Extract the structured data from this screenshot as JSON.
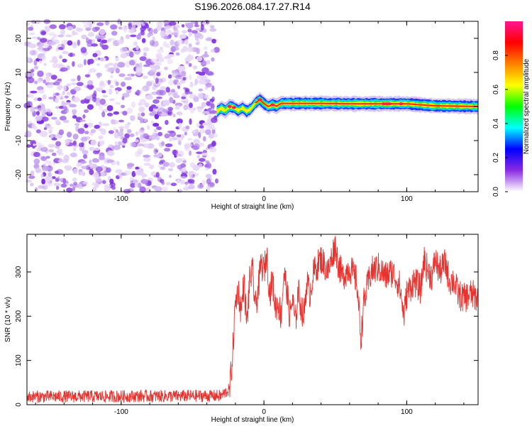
{
  "figure": {
    "title": "S196.2026.084.17.27.R14"
  },
  "chart_data": [
    {
      "type": "heatmap",
      "name": "spectrogram",
      "title": "S196.2026.084.17.27.R14",
      "xlabel": "Height of straight line (km)",
      "ylabel": "Frequency (Hz)",
      "xlim": [
        -166,
        150
      ],
      "ylim": [
        -25,
        25
      ],
      "xticks": [
        -100,
        0,
        100
      ],
      "yticks": [
        -20,
        -10,
        0,
        10,
        20
      ],
      "noise_region_x": [
        -166,
        -33
      ],
      "signal_region_x": [
        -33,
        150
      ],
      "frequency_track": {
        "x": [
          -33,
          -30,
          -27,
          -24,
          -21,
          -18,
          -15,
          -12,
          -9,
          -6,
          -3,
          0,
          3,
          6,
          9,
          12,
          20,
          40,
          60,
          80,
          100,
          120,
          150
        ],
        "freq": [
          -1.5,
          -0.5,
          -1.2,
          0.0,
          -0.3,
          -1.2,
          -0.4,
          -1.4,
          -0.6,
          1.0,
          2.0,
          0.9,
          0.0,
          0.5,
          0.1,
          0.9,
          0.9,
          0.9,
          0.8,
          0.8,
          0.8,
          0.2,
          0.0
        ]
      },
      "colorbar": {
        "label": "Normalized spectral amplitude",
        "range": [
          0,
          1
        ],
        "ticks": [
          "0.0",
          "0.2",
          "0.4",
          "0.6",
          "0.8"
        ],
        "colors": [
          "#ffffff",
          "#8a2be2",
          "#0000ff",
          "#00ffff",
          "#00ff00",
          "#ffff00",
          "#ff8000",
          "#ff0000",
          "#ff1493"
        ]
      }
    },
    {
      "type": "line",
      "name": "snr",
      "xlabel": "Height of straight line (km)",
      "ylabel": "SNR (10 * v/v)",
      "xlim": [
        -166,
        150
      ],
      "ylim": [
        0,
        385
      ],
      "xticks": [
        -100,
        0,
        100
      ],
      "yticks": [
        0,
        100,
        200,
        300
      ],
      "color": "#e8322e",
      "series": [
        {
          "name": "SNR",
          "anchors_x": [
            -166,
            -30,
            -24,
            -22,
            -20,
            -18,
            -16,
            -14,
            -12,
            -10,
            -8,
            -6,
            -4,
            -2,
            0,
            2,
            4,
            6,
            8,
            10,
            12,
            14,
            16,
            18,
            20,
            22,
            24,
            26,
            28,
            30,
            32,
            35,
            40,
            45,
            48,
            50,
            52,
            55,
            60,
            65,
            68,
            70,
            72,
            75,
            80,
            85,
            90,
            95,
            98,
            100,
            105,
            110,
            112,
            115,
            118,
            120,
            123,
            127,
            130,
            133,
            136,
            140,
            145,
            150
          ],
          "anchors_y": [
            18,
            20,
            35,
            110,
            230,
            260,
            210,
            280,
            180,
            280,
            300,
            220,
            260,
            320,
            300,
            340,
            250,
            280,
            220,
            230,
            200,
            300,
            260,
            200,
            240,
            180,
            260,
            220,
            200,
            280,
            250,
            300,
            330,
            300,
            340,
            360,
            320,
            290,
            310,
            280,
            150,
            230,
            260,
            300,
            310,
            290,
            300,
            270,
            200,
            250,
            280,
            260,
            330,
            300,
            290,
            330,
            300,
            320,
            280,
            280,
            250,
            240,
            250,
            240
          ],
          "noise_amplitude": 35
        }
      ]
    }
  ]
}
